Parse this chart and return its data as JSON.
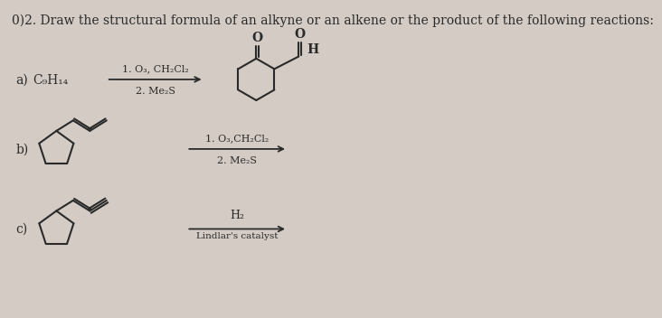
{
  "title": "0)2. Draw the structural formula of an alkyne or an alkene or the product of the following reactions:",
  "title_fontsize": 10,
  "bg_color": "#d4ccc4",
  "text_color": "#2a2a2a",
  "row_a": {
    "label": "a)",
    "reactant": "C₉H₁₄",
    "reagent_line1": "1. O₃, CH₂Cl₂",
    "reagent_line2": "2. Me₂S"
  },
  "row_b": {
    "label": "b)",
    "reagent_line1": "1. O₃,CH₂Cl₂",
    "reagent_line2": "2. Me₂S"
  },
  "row_c": {
    "label": "c)",
    "reagent_line1": "H₂",
    "reagent_line2": "Lindlar's catalyst"
  }
}
